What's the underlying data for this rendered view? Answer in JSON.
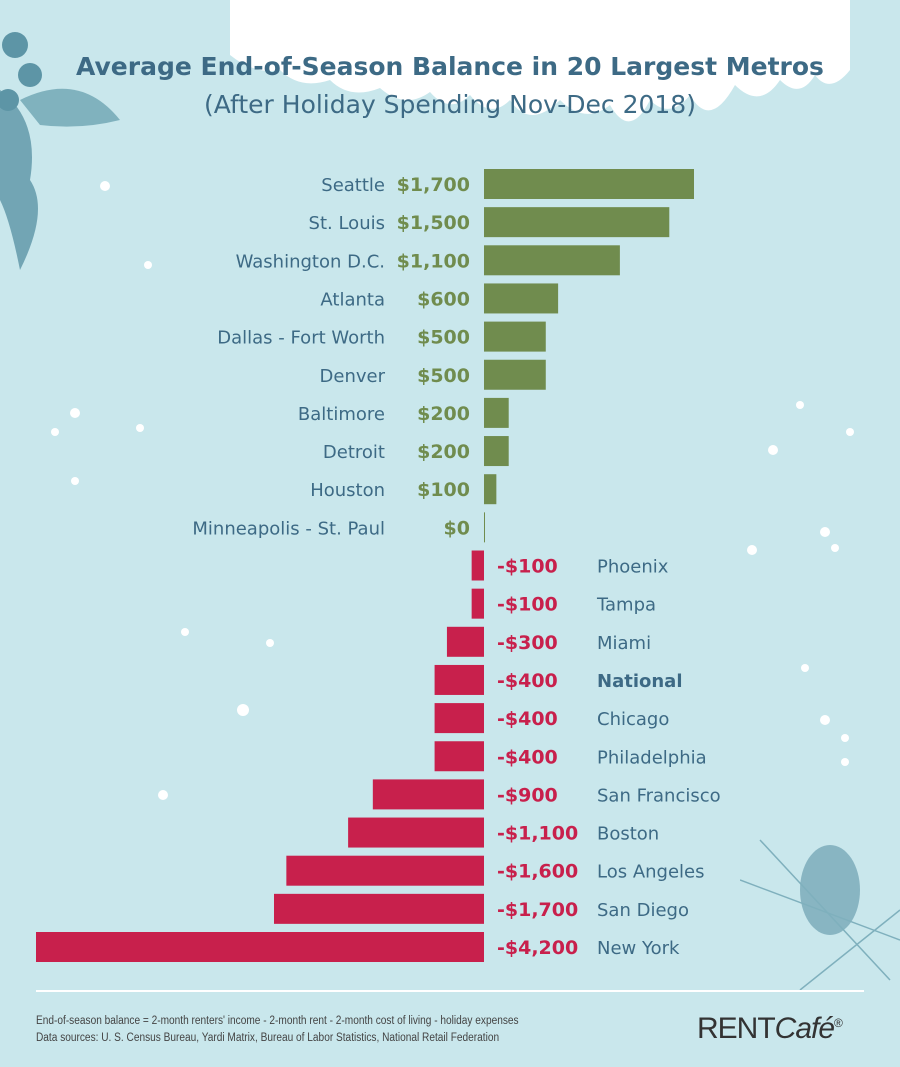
{
  "chart_data": {
    "type": "bar",
    "orientation": "horizontal",
    "title": "Average End-of-Season Balance in 20 Largest Metros",
    "subtitle": "(After Holiday Spending Nov-Dec 2018)",
    "categories": [
      "Seattle",
      "St. Louis",
      "Washington D.C.",
      "Atlanta",
      "Dallas - Fort Worth",
      "Denver",
      "Baltimore",
      "Detroit",
      "Houston",
      "Minneapolis - St. Paul",
      "Phoenix",
      "Tampa",
      "Miami",
      "National",
      "Chicago",
      "Philadelphia",
      "San Francisco",
      "Boston",
      "Los Angeles",
      "San Diego",
      "New York"
    ],
    "values": [
      1700,
      1500,
      1100,
      600,
      500,
      500,
      200,
      200,
      100,
      0,
      -100,
      -100,
      -300,
      -400,
      -400,
      -400,
      -900,
      -1100,
      -1600,
      -1700,
      -4200
    ],
    "labels": [
      "$1,700",
      "$1,500",
      "$1,100",
      "$600",
      "$500",
      "$500",
      "$200",
      "$200",
      "$100",
      "$0",
      "-$100",
      "-$100",
      "-$300",
      "-$400",
      "-$400",
      "-$400",
      "-$900",
      "-$1,100",
      "-$1,600",
      "-$1,700",
      "-$4,200"
    ],
    "highlight": "National",
    "colors": {
      "positive": "#708c4e",
      "negative": "#c8204c",
      "label": "#3d6a85",
      "background": "#c9e7ec"
    },
    "grid": false
  },
  "footer": {
    "formula": "End-of-season balance = 2-month renters' income - 2-month rent - 2-month cost of living - holiday expenses",
    "sources": "Data sources: U. S. Census Bureau, Yardi Matrix, Bureau of Labor Statistics, National Retail Federation"
  },
  "logo": {
    "text_rent": "RENT",
    "text_cafe": "Café",
    "mark": "®"
  }
}
